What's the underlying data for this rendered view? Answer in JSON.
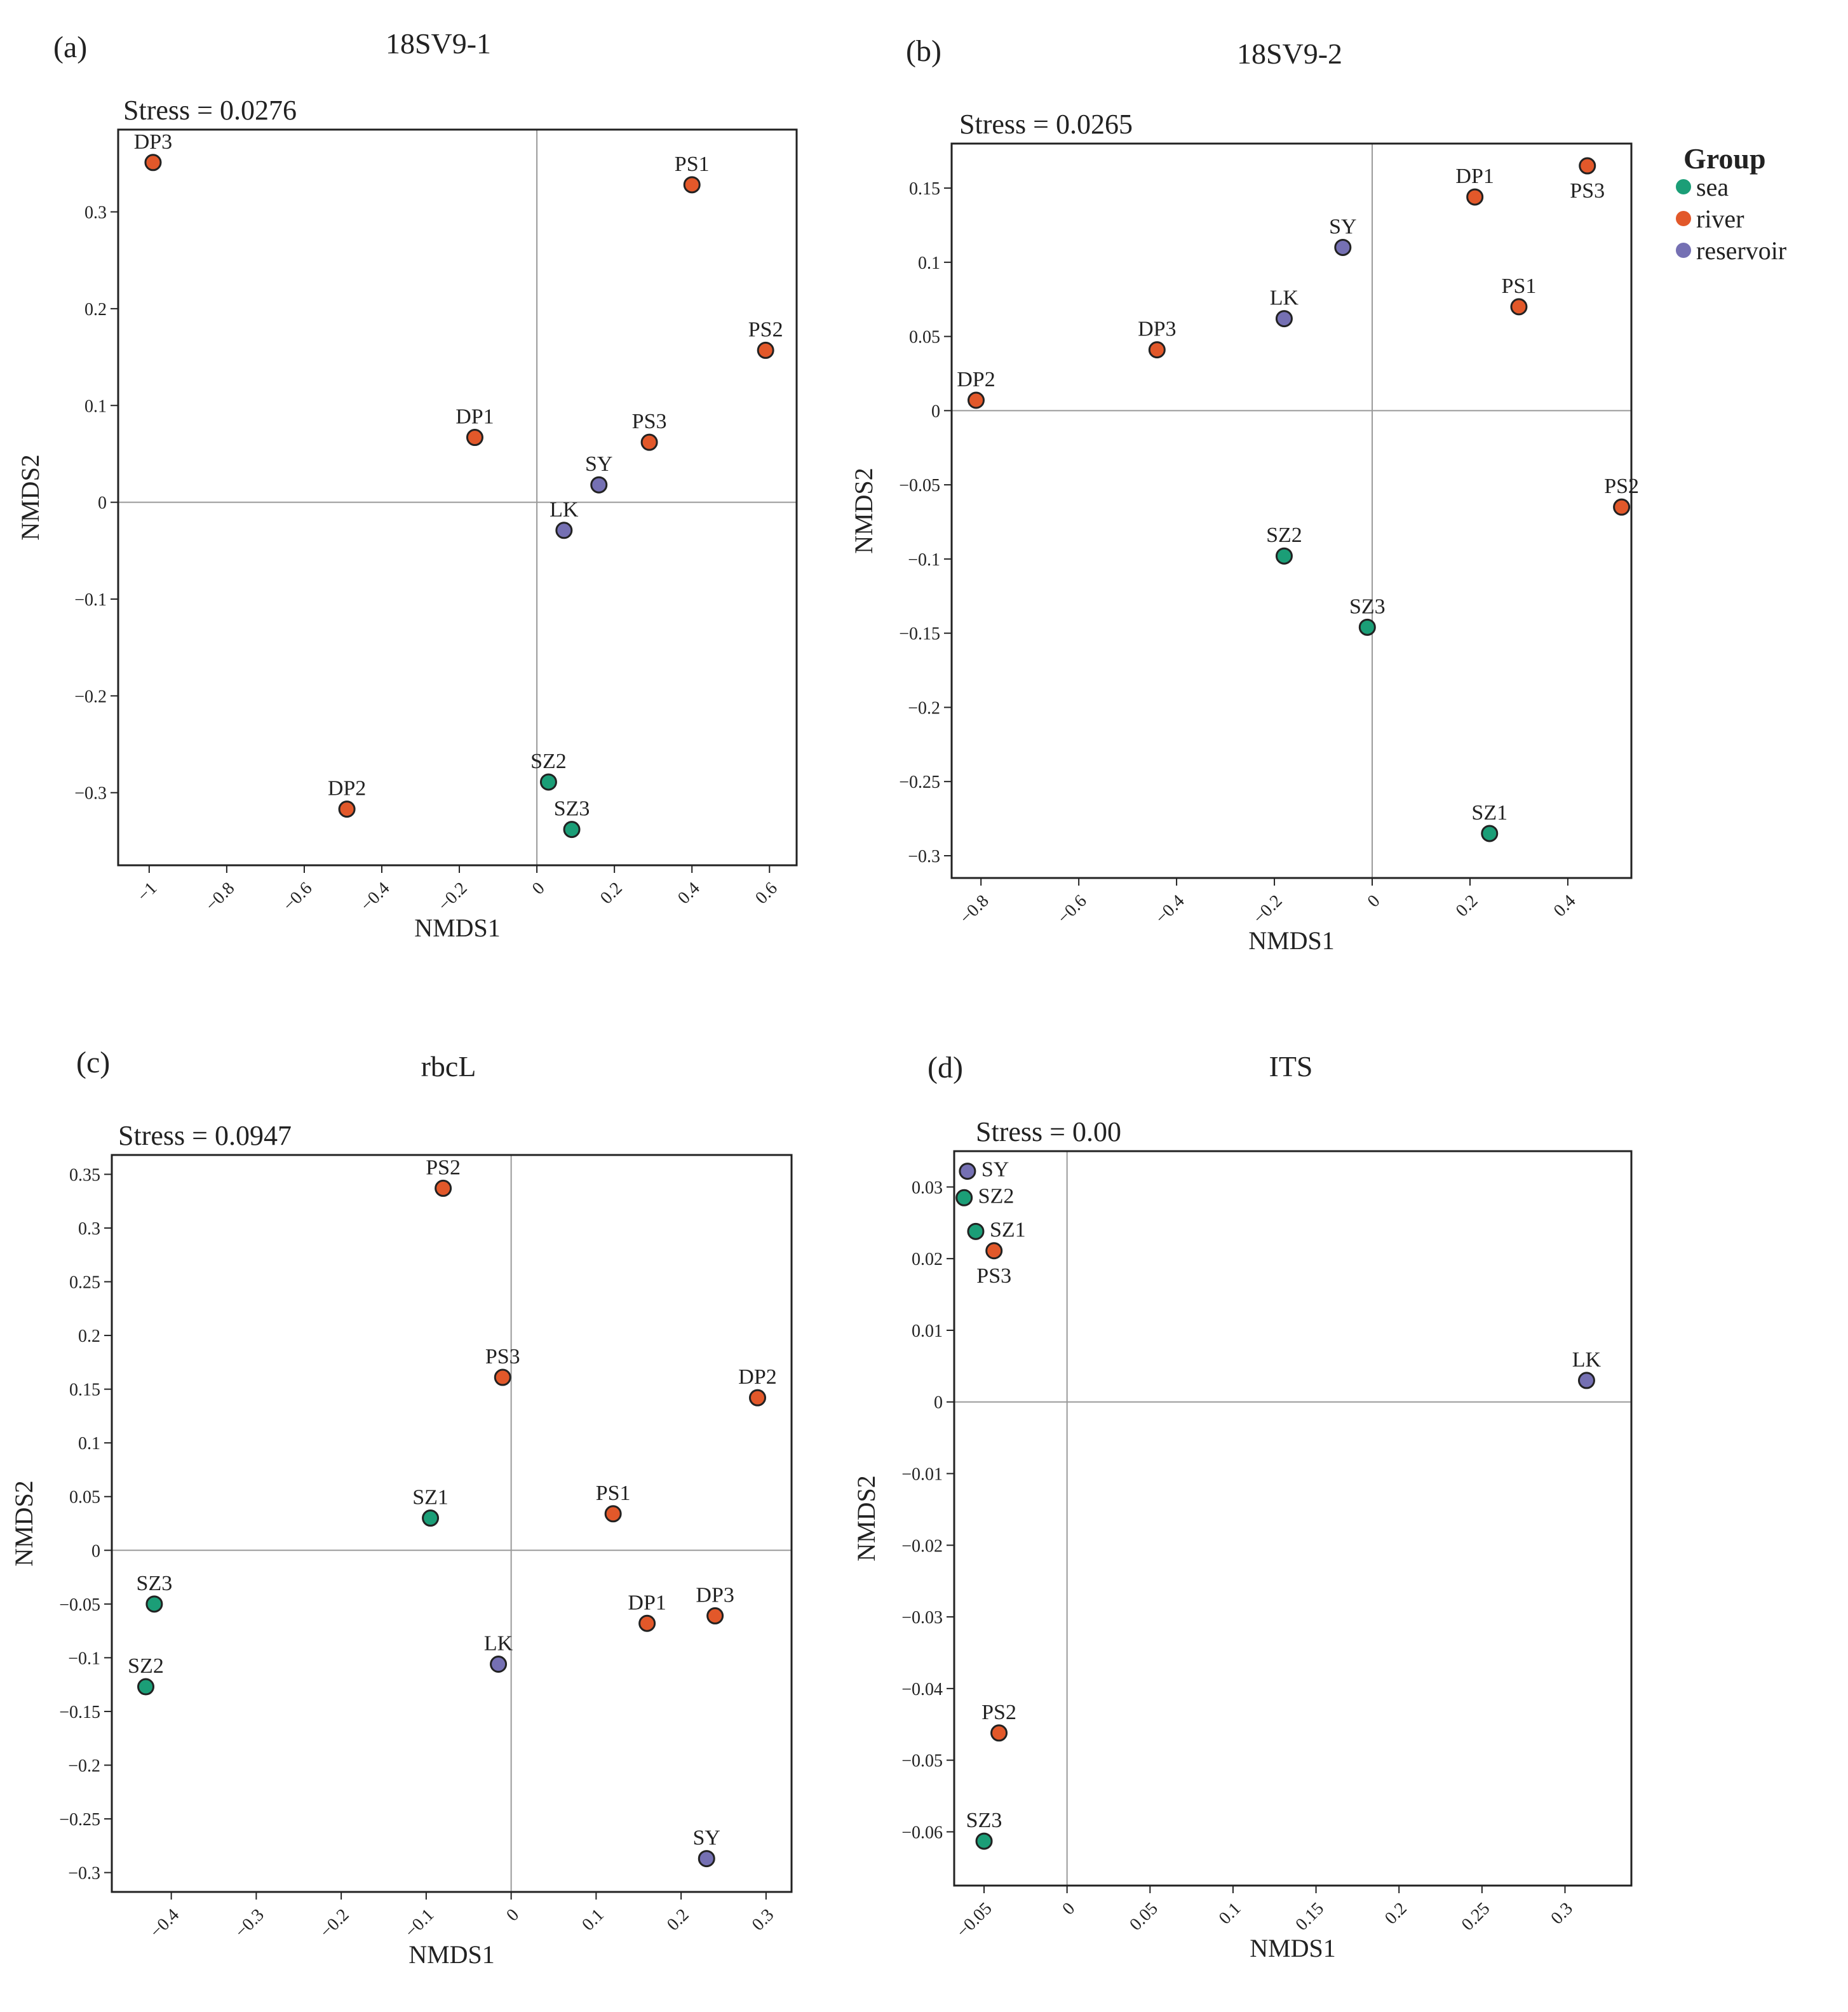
{
  "legend": {
    "title": "Group",
    "entries": [
      {
        "key": "sea",
        "label": "sea",
        "color": "#1b9e77"
      },
      {
        "key": "river",
        "label": "river",
        "color": "#e2582a"
      },
      {
        "key": "reservoir",
        "label": "reservoir",
        "color": "#7570b3"
      }
    ]
  },
  "chart_data": [
    {
      "type": "scatter",
      "panel": "(a)",
      "title": "18SV9-1",
      "stress": "Stress = 0.0276",
      "xlabel": "NMDS1",
      "ylabel": "NMDS2",
      "xlim": [
        -1.08,
        0.67
      ],
      "ylim": [
        -0.375,
        0.385
      ],
      "xticks": [
        -1,
        -0.8,
        -0.6,
        -0.4,
        -0.2,
        0,
        0.2,
        0.4,
        0.6
      ],
      "xtick_labels": [
        "−1",
        "−0.8",
        "−0.6",
        "−0.4",
        "−0.2",
        "0",
        "0.2",
        "0.4",
        "0.6"
      ],
      "yticks": [
        0.3,
        0.2,
        0.1,
        0,
        -0.1,
        -0.2,
        -0.3
      ],
      "ytick_labels": [
        "0.3",
        "0.2",
        "0.1",
        "0",
        "−0.1",
        "−0.2",
        "−0.3"
      ],
      "points": [
        {
          "label": "DP3",
          "x": -0.99,
          "y": 0.351,
          "group": "river",
          "pos": "above"
        },
        {
          "label": "PS1",
          "x": 0.4,
          "y": 0.328,
          "group": "river",
          "pos": "above"
        },
        {
          "label": "PS2",
          "x": 0.59,
          "y": 0.157,
          "group": "river",
          "pos": "above"
        },
        {
          "label": "DP1",
          "x": -0.16,
          "y": 0.067,
          "group": "river",
          "pos": "above"
        },
        {
          "label": "PS3",
          "x": 0.29,
          "y": 0.062,
          "group": "river",
          "pos": "above"
        },
        {
          "label": "SY",
          "x": 0.16,
          "y": 0.018,
          "group": "reservoir",
          "pos": "above"
        },
        {
          "label": "LK",
          "x": 0.07,
          "y": -0.029,
          "group": "reservoir",
          "pos": "above"
        },
        {
          "label": "SZ2",
          "x": 0.03,
          "y": -0.289,
          "group": "sea",
          "pos": "above"
        },
        {
          "label": "DP2",
          "x": -0.49,
          "y": -0.317,
          "group": "river",
          "pos": "above"
        },
        {
          "label": "SZ3",
          "x": 0.09,
          "y": -0.338,
          "group": "sea",
          "pos": "above"
        }
      ]
    },
    {
      "type": "scatter",
      "panel": "(b)",
      "title": "18SV9-2",
      "stress": "Stress = 0.0265",
      "xlabel": "NMDS1",
      "ylabel": "NMDS2",
      "xlim": [
        -0.86,
        0.53
      ],
      "ylim": [
        -0.315,
        0.18
      ],
      "xticks": [
        -0.8,
        -0.6,
        -0.4,
        -0.2,
        0,
        0.2,
        0.4
      ],
      "xtick_labels": [
        "−0.8",
        "−0.6",
        "−0.4",
        "−0.2",
        "0",
        "0.2",
        "0.4"
      ],
      "yticks": [
        0.15,
        0.1,
        0.05,
        0,
        -0.05,
        -0.1,
        -0.15,
        -0.2,
        -0.25,
        -0.3
      ],
      "ytick_labels": [
        "0.15",
        "0.1",
        "0.05",
        "0",
        "−0.05",
        "−0.1",
        "−0.15",
        "−0.2",
        "−0.25",
        "−0.3"
      ],
      "points": [
        {
          "label": "PS3",
          "x": 0.44,
          "y": 0.165,
          "group": "river",
          "pos": "below"
        },
        {
          "label": "DP1",
          "x": 0.21,
          "y": 0.144,
          "group": "river",
          "pos": "above"
        },
        {
          "label": "SY",
          "x": -0.06,
          "y": 0.11,
          "group": "reservoir",
          "pos": "above"
        },
        {
          "label": "PS1",
          "x": 0.3,
          "y": 0.07,
          "group": "river",
          "pos": "above"
        },
        {
          "label": "LK",
          "x": -0.18,
          "y": 0.062,
          "group": "reservoir",
          "pos": "above"
        },
        {
          "label": "DP3",
          "x": -0.44,
          "y": 0.041,
          "group": "river",
          "pos": "above"
        },
        {
          "label": "DP2",
          "x": -0.81,
          "y": 0.007,
          "group": "river",
          "pos": "above"
        },
        {
          "label": "PS2",
          "x": 0.51,
          "y": -0.065,
          "group": "river",
          "pos": "above"
        },
        {
          "label": "SZ2",
          "x": -0.18,
          "y": -0.098,
          "group": "sea",
          "pos": "above"
        },
        {
          "label": "SZ3",
          "x": -0.01,
          "y": -0.146,
          "group": "sea",
          "pos": "above"
        },
        {
          "label": "SZ1",
          "x": 0.24,
          "y": -0.285,
          "group": "sea",
          "pos": "above"
        }
      ]
    },
    {
      "type": "scatter",
      "panel": "(c)",
      "title": "rbcL",
      "stress": "Stress = 0.0947",
      "xlabel": "NMDS1",
      "ylabel": "NMDS2",
      "xlim": [
        -0.47,
        0.33
      ],
      "ylim": [
        -0.318,
        0.368
      ],
      "xticks": [
        -0.4,
        -0.3,
        -0.2,
        -0.1,
        0,
        0.1,
        0.2,
        0.3
      ],
      "xtick_labels": [
        "−0.4",
        "−0.3",
        "−0.2",
        "−0.1",
        "0",
        "0.1",
        "0.2",
        "0.3"
      ],
      "yticks": [
        0.35,
        0.3,
        0.25,
        0.2,
        0.15,
        0.1,
        0.05,
        0,
        -0.05,
        -0.1,
        -0.15,
        -0.2,
        -0.25,
        -0.3
      ],
      "ytick_labels": [
        "0.35",
        "0.3",
        "0.25",
        "0.2",
        "0.15",
        "0.1",
        "0.05",
        "0",
        "−0.05",
        "−0.1",
        "−0.15",
        "−0.2",
        "−0.25",
        "−0.3"
      ],
      "points": [
        {
          "label": "PS2",
          "x": -0.08,
          "y": 0.337,
          "group": "river",
          "pos": "above"
        },
        {
          "label": "PS3",
          "x": -0.01,
          "y": 0.161,
          "group": "river",
          "pos": "above"
        },
        {
          "label": "DP2",
          "x": 0.29,
          "y": 0.142,
          "group": "river",
          "pos": "above"
        },
        {
          "label": "PS1",
          "x": 0.12,
          "y": 0.034,
          "group": "river",
          "pos": "above"
        },
        {
          "label": "SZ1",
          "x": -0.095,
          "y": 0.03,
          "group": "sea",
          "pos": "above"
        },
        {
          "label": "SZ3",
          "x": -0.42,
          "y": -0.05,
          "group": "sea",
          "pos": "above"
        },
        {
          "label": "DP3",
          "x": 0.24,
          "y": -0.061,
          "group": "river",
          "pos": "above"
        },
        {
          "label": "DP1",
          "x": 0.16,
          "y": -0.068,
          "group": "river",
          "pos": "above"
        },
        {
          "label": "LK",
          "x": -0.015,
          "y": -0.106,
          "group": "reservoir",
          "pos": "above"
        },
        {
          "label": "SZ2",
          "x": -0.43,
          "y": -0.127,
          "group": "sea",
          "pos": "above"
        },
        {
          "label": "SY",
          "x": 0.23,
          "y": -0.287,
          "group": "reservoir",
          "pos": "above"
        }
      ]
    },
    {
      "type": "scatter",
      "panel": "(d)",
      "title": "ITS",
      "stress": "Stress = 0.00",
      "xlabel": "NMDS1",
      "ylabel": "NMDS2",
      "xlim": [
        -0.068,
        0.34
      ],
      "ylim": [
        -0.0675,
        0.035
      ],
      "xticks": [
        -0.05,
        0,
        0.05,
        0.1,
        0.15,
        0.2,
        0.25,
        0.3
      ],
      "xtick_labels": [
        "−0.05",
        "0",
        "0.05",
        "0.1",
        "0.15",
        "0.2",
        "0.25",
        "0.3"
      ],
      "yticks": [
        0.03,
        0.02,
        0.01,
        0,
        -0.01,
        -0.02,
        -0.03,
        -0.04,
        -0.05,
        -0.06
      ],
      "ytick_labels": [
        "0.03",
        "0.02",
        "0.01",
        "0",
        "−0.01",
        "−0.02",
        "−0.03",
        "−0.04",
        "−0.05",
        "−0.06"
      ],
      "points": [
        {
          "label": "SY",
          "x": -0.06,
          "y": 0.0322,
          "group": "reservoir",
          "pos": "right"
        },
        {
          "label": "SZ2",
          "x": -0.062,
          "y": 0.0285,
          "group": "sea",
          "pos": "right"
        },
        {
          "label": "SZ1",
          "x": -0.055,
          "y": 0.0238,
          "group": "sea",
          "pos": "right"
        },
        {
          "label": "PS3",
          "x": -0.044,
          "y": 0.0211,
          "group": "river",
          "pos": "below"
        },
        {
          "label": "LK",
          "x": 0.313,
          "y": 0.003,
          "group": "reservoir",
          "pos": "above"
        },
        {
          "label": "PS2",
          "x": -0.041,
          "y": -0.0462,
          "group": "river",
          "pos": "above"
        },
        {
          "label": "SZ3",
          "x": -0.05,
          "y": -0.0613,
          "group": "sea",
          "pos": "above"
        }
      ]
    }
  ]
}
